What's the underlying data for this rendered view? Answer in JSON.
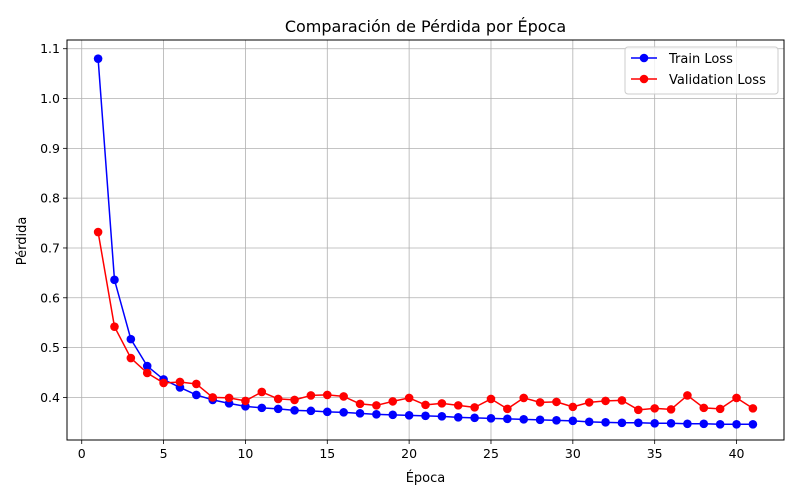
{
  "chart_data": {
    "type": "line",
    "title": "Comparación de Pérdida por Época",
    "xlabel": "Época",
    "ylabel": "Pérdida",
    "xlim": [
      -0.9,
      42.9
    ],
    "ylim": [
      0.3145,
      1.1175
    ],
    "x_ticks": [
      0,
      5,
      10,
      15,
      20,
      25,
      30,
      35,
      40
    ],
    "y_ticks": [
      0.4,
      0.5,
      0.6,
      0.7,
      0.8,
      0.9,
      1.0,
      1.1
    ],
    "grid": true,
    "legend_position": "top-right",
    "x": [
      1,
      2,
      3,
      4,
      5,
      6,
      7,
      8,
      9,
      10,
      11,
      12,
      13,
      14,
      15,
      16,
      17,
      18,
      19,
      20,
      21,
      22,
      23,
      24,
      25,
      26,
      27,
      28,
      29,
      30,
      31,
      32,
      33,
      34,
      35,
      36,
      37,
      38,
      39,
      40,
      41
    ],
    "series": [
      {
        "name": "Train Loss",
        "color": "#0000ff",
        "values": [
          1.08,
          0.636,
          0.517,
          0.463,
          0.436,
          0.42,
          0.405,
          0.395,
          0.388,
          0.382,
          0.379,
          0.377,
          0.374,
          0.373,
          0.371,
          0.37,
          0.368,
          0.366,
          0.365,
          0.364,
          0.363,
          0.362,
          0.36,
          0.359,
          0.358,
          0.357,
          0.356,
          0.355,
          0.354,
          0.353,
          0.351,
          0.35,
          0.349,
          0.349,
          0.348,
          0.348,
          0.347,
          0.347,
          0.346,
          0.346,
          0.346
        ]
      },
      {
        "name": "Validation Loss",
        "color": "#ff0000",
        "values": [
          0.732,
          0.542,
          0.479,
          0.449,
          0.429,
          0.431,
          0.427,
          0.4,
          0.399,
          0.393,
          0.411,
          0.397,
          0.395,
          0.404,
          0.405,
          0.402,
          0.387,
          0.384,
          0.392,
          0.399,
          0.385,
          0.388,
          0.384,
          0.38,
          0.397,
          0.377,
          0.399,
          0.39,
          0.391,
          0.381,
          0.39,
          0.393,
          0.394,
          0.375,
          0.378,
          0.376,
          0.404,
          0.379,
          0.377,
          0.399,
          0.378
        ]
      }
    ]
  }
}
